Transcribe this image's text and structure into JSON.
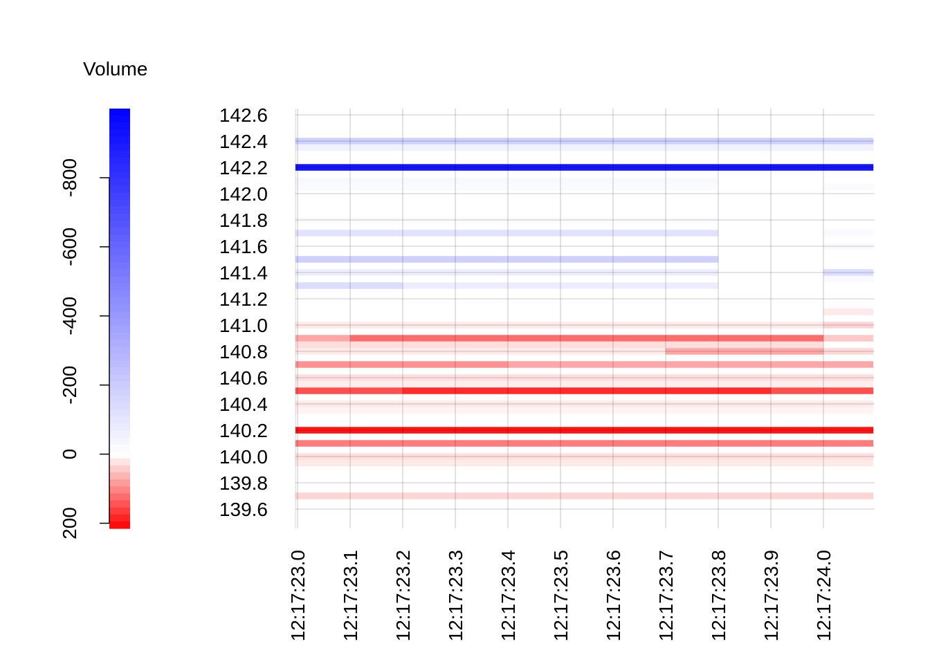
{
  "chart_data": {
    "type": "heatmap",
    "title": "",
    "xlabel": "",
    "ylabel": "",
    "legend": {
      "title": "Volume",
      "position": "left",
      "range": [
        -1000,
        215
      ],
      "ticks": [
        -800,
        -600,
        -400,
        -200,
        0,
        200
      ],
      "tick_labels": [
        "-800",
        "-600",
        "-400",
        "-200",
        "0",
        "200"
      ],
      "color_negative": "#0000FF",
      "color_zero": "#FFFFFF",
      "color_positive": "#FF0000"
    },
    "x_ticks": [
      "12:17:23.0",
      "12:17:23.1",
      "12:17:23.2",
      "12:17:23.3",
      "12:17:23.4",
      "12:17:23.5",
      "12:17:23.6",
      "12:17:23.7",
      "12:17:23.8",
      "12:17:23.9",
      "12:17:24.0"
    ],
    "xlim": [
      "12:17:22.995",
      "12:17:24.095"
    ],
    "y_ticks": [
      "142.6",
      "142.4",
      "142.2",
      "142.0",
      "141.8",
      "141.6",
      "141.4",
      "141.2",
      "141.0",
      "140.8",
      "140.6",
      "140.4",
      "140.2",
      "140.0",
      "139.8",
      "139.6"
    ],
    "ylim": [
      139.55,
      142.6
    ],
    "grid": true,
    "cells": [
      {
        "price": 142.4,
        "from": "12:17:22.995",
        "to": "12:17:24.095",
        "volume": -200
      },
      {
        "price": 142.35,
        "from": "12:17:22.995",
        "to": "12:17:24.095",
        "volume": -60
      },
      {
        "price": 142.2,
        "from": "12:17:22.995",
        "to": "12:17:24.095",
        "volume": -1000
      },
      {
        "price": 142.1,
        "from": "12:17:22.995",
        "to": "12:17:23.8",
        "volume": -30
      },
      {
        "price": 142.05,
        "from": "12:17:22.995",
        "to": "12:17:23.8",
        "volume": -15
      },
      {
        "price": 142.05,
        "from": "12:17:24.0",
        "to": "12:17:24.095",
        "volume": -15
      },
      {
        "price": 141.8,
        "from": "12:17:22.995",
        "to": "12:17:23.8",
        "volume": -15
      },
      {
        "price": 141.7,
        "from": "12:17:22.995",
        "to": "12:17:23.8",
        "volume": -120
      },
      {
        "price": 141.7,
        "from": "12:17:24.0",
        "to": "12:17:24.095",
        "volume": -25
      },
      {
        "price": 141.6,
        "from": "12:17:24.0",
        "to": "12:17:24.095",
        "volume": -25
      },
      {
        "price": 141.5,
        "from": "12:17:22.995",
        "to": "12:17:23.8",
        "volume": -200
      },
      {
        "price": 141.4,
        "from": "12:17:22.995",
        "to": "12:17:23.8",
        "volume": -70
      },
      {
        "price": 141.4,
        "from": "12:17:24.0",
        "to": "12:17:24.095",
        "volume": -150
      },
      {
        "price": 141.35,
        "from": "12:17:24.0",
        "to": "12:17:24.095",
        "volume": -25
      },
      {
        "price": 141.3,
        "from": "12:17:22.995",
        "to": "12:17:23.2",
        "volume": -150
      },
      {
        "price": 141.3,
        "from": "12:17:23.2",
        "to": "12:17:23.8",
        "volume": -80
      },
      {
        "price": 141.1,
        "from": "12:17:24.0",
        "to": "12:17:24.095",
        "volume": 20
      },
      {
        "price": 141.0,
        "from": "12:17:22.995",
        "to": "12:17:24.0",
        "volume": 20
      },
      {
        "price": 141.0,
        "from": "12:17:24.0",
        "to": "12:17:24.095",
        "volume": 40
      },
      {
        "price": 140.9,
        "from": "12:17:22.995",
        "to": "12:17:23.1",
        "volume": 80
      },
      {
        "price": 140.9,
        "from": "12:17:23.1",
        "to": "12:17:24.0",
        "volume": 135
      },
      {
        "price": 140.9,
        "from": "12:17:24.0",
        "to": "12:17:24.095",
        "volume": 50
      },
      {
        "price": 140.85,
        "from": "12:17:22.995",
        "to": "12:17:24.0",
        "volume": 30
      },
      {
        "price": 140.8,
        "from": "12:17:22.995",
        "to": "12:17:23.7",
        "volume": 20
      },
      {
        "price": 140.8,
        "from": "12:17:23.7",
        "to": "12:17:24.0",
        "volume": 80
      },
      {
        "price": 140.8,
        "from": "12:17:24.0",
        "to": "12:17:24.095",
        "volume": 35
      },
      {
        "price": 140.7,
        "from": "12:17:22.995",
        "to": "12:17:23.4",
        "volume": 100
      },
      {
        "price": 140.7,
        "from": "12:17:23.4",
        "to": "12:17:24.095",
        "volume": 80
      },
      {
        "price": 140.6,
        "from": "12:17:22.995",
        "to": "12:17:24.095",
        "volume": 30
      },
      {
        "price": 140.55,
        "from": "12:17:22.995",
        "to": "12:17:24.095",
        "volume": 15
      },
      {
        "price": 140.5,
        "from": "12:17:22.995",
        "to": "12:17:23.2",
        "volume": 160
      },
      {
        "price": 140.5,
        "from": "12:17:23.2",
        "to": "12:17:23.9",
        "volume": 195
      },
      {
        "price": 140.5,
        "from": "12:17:23.9",
        "to": "12:17:24.095",
        "volume": 160
      },
      {
        "price": 140.4,
        "from": "12:17:22.995",
        "to": "12:17:24.095",
        "volume": 20
      },
      {
        "price": 140.35,
        "from": "12:17:22.995",
        "to": "12:17:24.095",
        "volume": 10
      },
      {
        "price": 140.2,
        "from": "12:17:22.995",
        "to": "12:17:24.095",
        "volume": 215
      },
      {
        "price": 140.1,
        "from": "12:17:22.995",
        "to": "12:17:24.095",
        "volume": 120
      },
      {
        "price": 140.0,
        "from": "12:17:22.995",
        "to": "12:17:24.095",
        "volume": 30
      },
      {
        "price": 139.95,
        "from": "12:17:22.995",
        "to": "12:17:24.095",
        "volume": 20
      },
      {
        "price": 139.7,
        "from": "12:17:22.995",
        "to": "12:17:24.095",
        "volume": 40
      }
    ]
  }
}
